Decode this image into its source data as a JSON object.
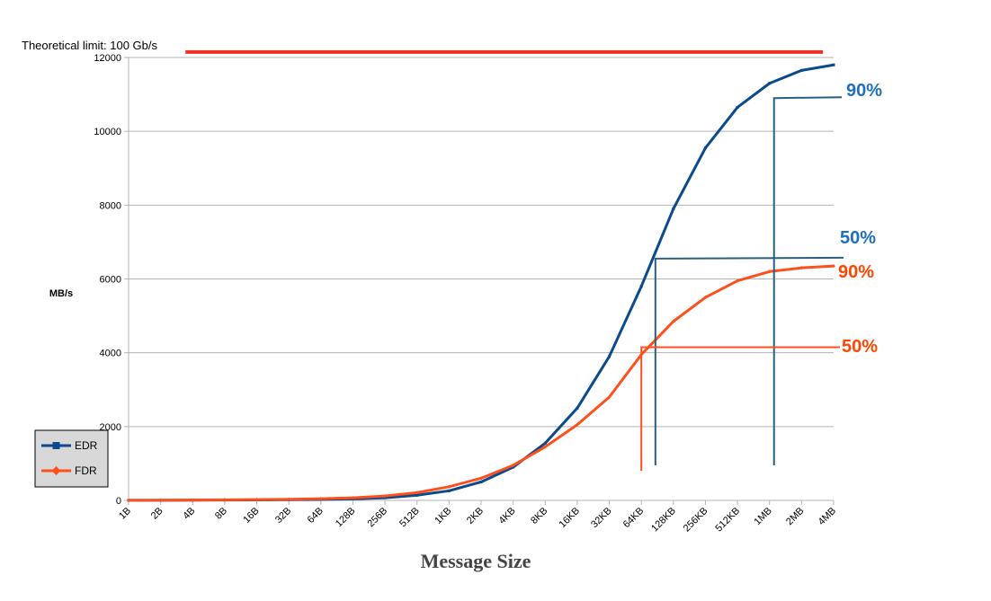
{
  "chart_data": {
    "type": "line",
    "xlabel": "Message Size",
    "ylabel": "MB/s",
    "ylim": [
      0,
      12000
    ],
    "yticks": [
      0,
      2000,
      4000,
      6000,
      8000,
      10000,
      12000
    ],
    "grid": "horizontal",
    "legend_position": "left",
    "categories": [
      "1B",
      "2B",
      "4B",
      "8B",
      "16B",
      "32B",
      "64B",
      "128B",
      "256B",
      "512B",
      "1KB",
      "2KB",
      "4KB",
      "8KB",
      "16KB",
      "32KB",
      "64KB",
      "128KB",
      "256KB",
      "512KB",
      "1MB",
      "2MB",
      "4MB"
    ],
    "series": [
      {
        "name": "EDR",
        "color": "#0b4a8b",
        "marker": "square",
        "values": [
          2,
          4,
          6,
          9,
          12,
          18,
          25,
          40,
          70,
          140,
          260,
          500,
          900,
          1550,
          2500,
          3900,
          5800,
          7900,
          9550,
          10650,
          11300,
          11650,
          11800
        ]
      },
      {
        "name": "FDR",
        "color": "#ff4f1c",
        "marker": "diamond",
        "values": [
          4,
          7,
          10,
          14,
          20,
          30,
          45,
          70,
          120,
          210,
          370,
          600,
          950,
          1450,
          2050,
          2800,
          3950,
          4850,
          5500,
          5950,
          6200,
          6300,
          6350
        ]
      }
    ],
    "reference_line": {
      "label": "Theoretical limit: 100 Gb/s",
      "value": 12150,
      "from_category": "4B",
      "to_category": "4MB",
      "color": "#ee3124"
    },
    "annotations": [
      {
        "text": "90%",
        "color": "#1f6fbf",
        "series": "EDR",
        "y": 10900,
        "drop_x_category": "1MB"
      },
      {
        "text": "50%",
        "color": "#1f6fbf",
        "series": "EDR",
        "y": 6550,
        "drop_x_category": "128KB"
      },
      {
        "text": "90%",
        "color": "#ff4500",
        "series": "FDR",
        "y": 6350
      },
      {
        "text": "50%",
        "color": "#ff4500",
        "series": "FDR",
        "y": 4150,
        "drop_x_category": "64KB"
      }
    ]
  }
}
